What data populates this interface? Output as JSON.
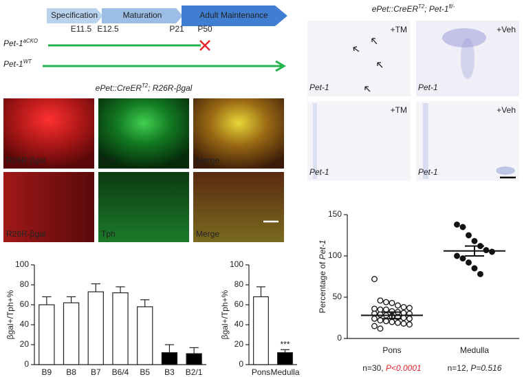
{
  "timeline": {
    "stages": [
      "Specification",
      "Maturation",
      "Adult Maintenance"
    ],
    "timepoints": [
      "E11.5",
      "E12.5",
      "P21",
      "P50"
    ],
    "lines": [
      {
        "label": [
          {
            "text": "Pet-1"
          },
          {
            "text": "aCKO",
            "sup": true
          }
        ]
      },
      {
        "label": [
          {
            "text": "Pet-1"
          },
          {
            "text": "WT",
            "sup": true
          }
        ]
      }
    ]
  },
  "micrographs": {
    "title": [
      {
        "text": "ePet::CreER"
      },
      {
        "text": "T2",
        "sup": true
      },
      {
        "text": "; R26R-βgal"
      }
    ],
    "rows": [
      [
        "R26R-βgal",
        "Tph",
        "Merge"
      ],
      [
        "R26R-βgal",
        "Tph",
        "Merge"
      ]
    ]
  },
  "in_situ": {
    "title": [
      {
        "text": "ePet::CreER"
      },
      {
        "text": "T2",
        "sup": true
      },
      {
        "text": "; Pet-1"
      },
      {
        "text": "fl/-",
        "sup": true
      }
    ],
    "panels": [
      {
        "treatment": "+TM",
        "gene": "Pet-1"
      },
      {
        "treatment": "+Veh",
        "gene": "Pet-1"
      },
      {
        "treatment": "+TM",
        "gene": "Pet-1"
      },
      {
        "treatment": "+Veh",
        "gene": "Pet-1"
      }
    ]
  },
  "chart_data": [
    {
      "type": "bar",
      "ylabel": "βgal+/Tph+%",
      "categories": [
        "B9",
        "B8",
        "B7",
        "B6/4",
        "B5",
        "B3",
        "B2/1"
      ],
      "values": [
        60,
        62,
        73,
        72,
        58,
        12,
        11
      ],
      "errors": [
        8,
        6,
        8,
        6,
        7,
        8,
        6
      ],
      "colors": [
        "#ffffff",
        "#ffffff",
        "#ffffff",
        "#ffffff",
        "#ffffff",
        "#000000",
        "#000000"
      ],
      "ylim": [
        0,
        100
      ],
      "yticks": [
        0,
        20,
        40,
        60,
        80,
        100
      ]
    },
    {
      "type": "bar",
      "ylabel": "βgal+/Tph+%",
      "categories": [
        "Pons",
        "Medulla"
      ],
      "values": [
        68,
        12
      ],
      "errors": [
        10,
        3
      ],
      "colors": [
        "#ffffff",
        "#000000"
      ],
      "value_annotations": [
        null,
        "***"
      ],
      "ylim": [
        0,
        100
      ],
      "yticks": [
        0,
        20,
        40,
        60,
        80,
        100
      ]
    },
    {
      "type": "strip",
      "ylabel": [
        {
          "text": "Percentage of "
        },
        {
          "text": "Pet-1",
          "italic": true
        }
      ],
      "categories": [
        "Pons",
        "Medulla"
      ],
      "values": [
        [
          72,
          46,
          44,
          43,
          40,
          38,
          37,
          36,
          35,
          35,
          33,
          32,
          31,
          30,
          30,
          29,
          28,
          27,
          26,
          25,
          24,
          24,
          22,
          21,
          20,
          19,
          18,
          17,
          15,
          12
        ],
        [
          138,
          135,
          125,
          118,
          112,
          107,
          105,
          100,
          97,
          92,
          85,
          78
        ]
      ],
      "means": [
        28,
        106
      ],
      "sems": [
        4,
        6
      ],
      "markers": [
        "open",
        "filled"
      ],
      "notes": [
        [
          {
            "text": "n=30, "
          },
          {
            "text": "P<0.0001",
            "italic": true,
            "color": "#e8232a"
          }
        ],
        [
          {
            "text": "n=12, "
          },
          {
            "text": "P=0.516",
            "italic": true
          }
        ]
      ],
      "ylim": [
        0,
        150
      ],
      "yticks": [
        0,
        50,
        100,
        150
      ]
    }
  ]
}
